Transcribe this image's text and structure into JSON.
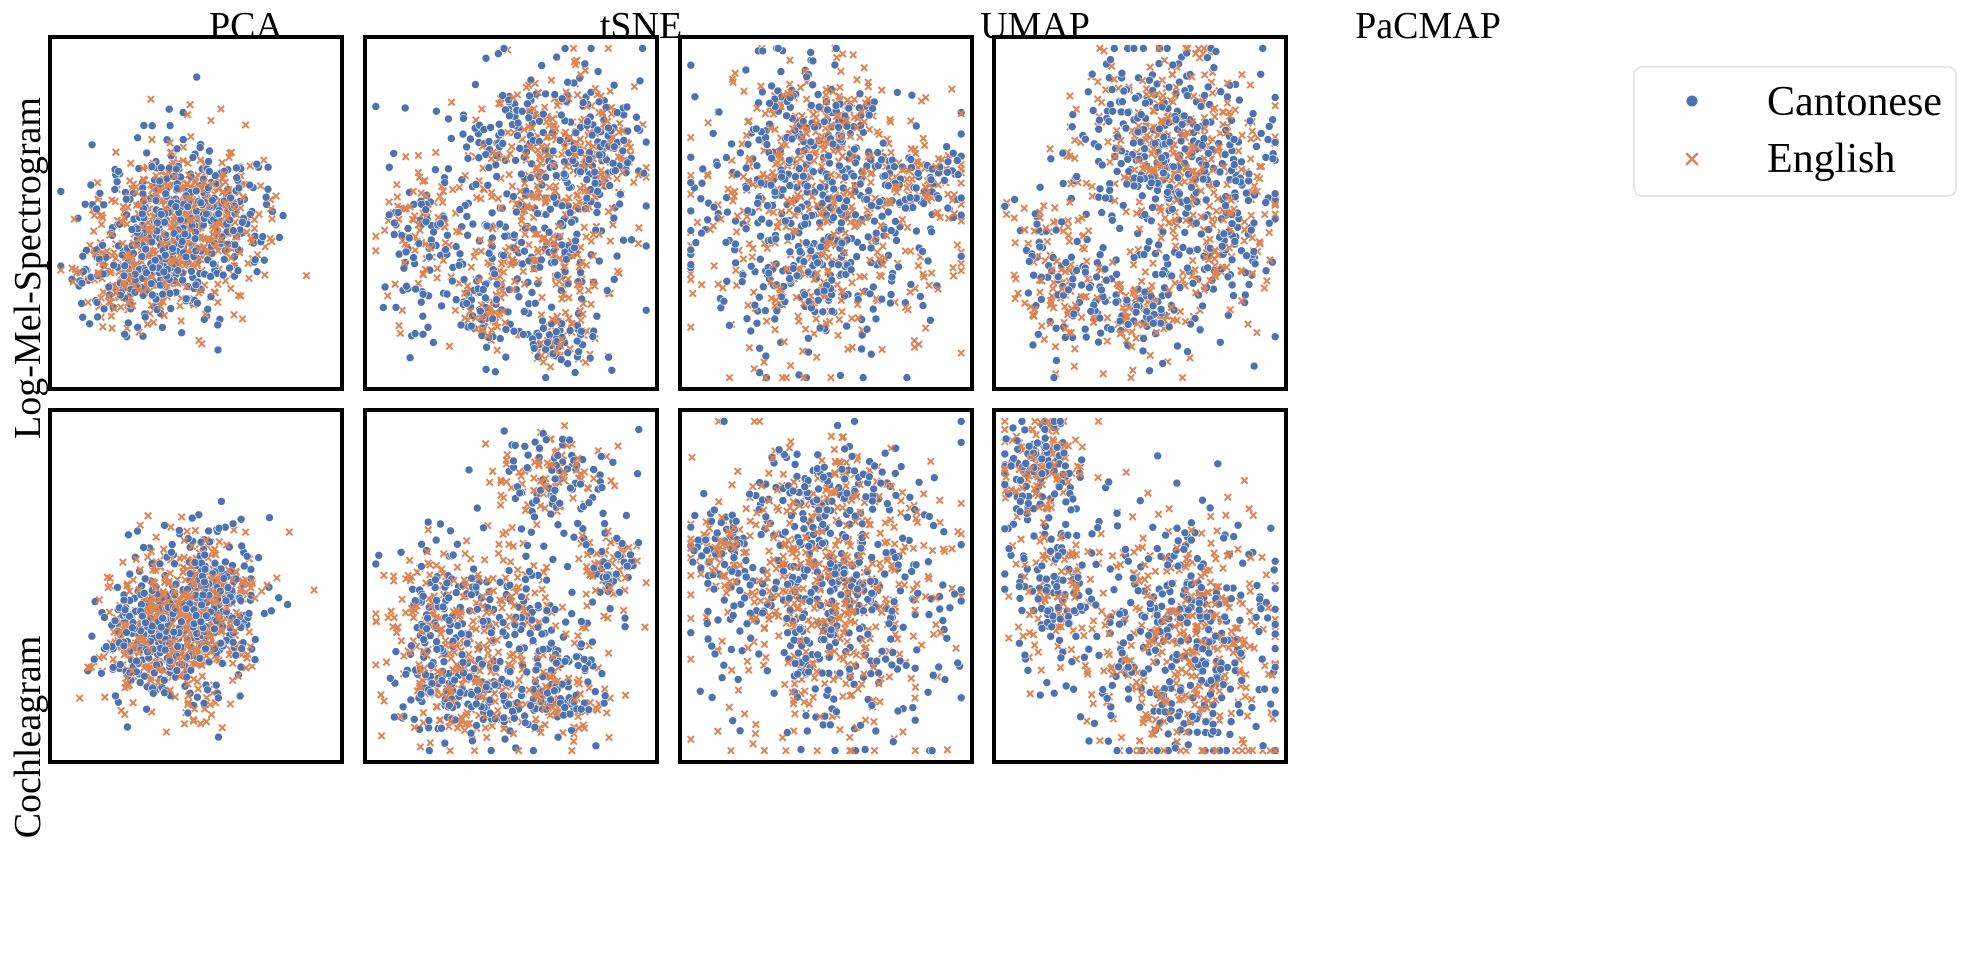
{
  "figure": {
    "columns": [
      "PCA",
      "tSNE",
      "UMAP",
      "PaCMAP"
    ],
    "rows": [
      "Log-Mel-Spectrogram",
      "Cochleagram"
    ],
    "legend": {
      "items": [
        {
          "label": "Cantonese",
          "marker": "circle",
          "color": "#4c72b0"
        },
        {
          "label": "English",
          "marker": "x",
          "color": "#dd8452"
        }
      ],
      "placement": "upper-right, outside plots"
    }
  },
  "chart_data": [
    {
      "type": "scatter",
      "row": "Log-Mel-Spectrogram",
      "column": "PCA",
      "axes": "hidden",
      "grid": false,
      "series": [
        {
          "name": "Cantonese",
          "marker": "circle",
          "color": "#4c72b0",
          "x": [],
          "y": []
        },
        {
          "name": "English",
          "marker": "x",
          "color": "#dd8452",
          "x": [],
          "y": []
        }
      ]
    },
    {
      "type": "scatter",
      "row": "Log-Mel-Spectrogram",
      "column": "tSNE",
      "axes": "hidden",
      "grid": false,
      "series": [
        {
          "name": "Cantonese",
          "marker": "circle",
          "color": "#4c72b0",
          "x": [],
          "y": []
        },
        {
          "name": "English",
          "marker": "x",
          "color": "#dd8452",
          "x": [],
          "y": []
        }
      ]
    },
    {
      "type": "scatter",
      "row": "Log-Mel-Spectrogram",
      "column": "UMAP",
      "axes": "hidden",
      "grid": false,
      "series": [
        {
          "name": "Cantonese",
          "marker": "circle",
          "color": "#4c72b0",
          "x": [],
          "y": []
        },
        {
          "name": "English",
          "marker": "x",
          "color": "#dd8452",
          "x": [],
          "y": []
        }
      ]
    },
    {
      "type": "scatter",
      "row": "Log-Mel-Spectrogram",
      "column": "PaCMAP",
      "axes": "hidden",
      "grid": false,
      "series": [
        {
          "name": "Cantonese",
          "marker": "circle",
          "color": "#4c72b0",
          "x": [],
          "y": []
        },
        {
          "name": "English",
          "marker": "x",
          "color": "#dd8452",
          "x": [],
          "y": []
        }
      ]
    },
    {
      "type": "scatter",
      "row": "Cochleagram",
      "column": "PCA",
      "axes": "hidden",
      "grid": false,
      "series": [
        {
          "name": "Cantonese",
          "marker": "circle",
          "color": "#4c72b0",
          "x": [],
          "y": []
        },
        {
          "name": "English",
          "marker": "x",
          "color": "#dd8452",
          "x": [],
          "y": []
        }
      ]
    },
    {
      "type": "scatter",
      "row": "Cochleagram",
      "column": "tSNE",
      "axes": "hidden",
      "grid": false,
      "series": [
        {
          "name": "Cantonese",
          "marker": "circle",
          "color": "#4c72b0",
          "x": [],
          "y": []
        },
        {
          "name": "English",
          "marker": "x",
          "color": "#dd8452",
          "x": [],
          "y": []
        }
      ]
    },
    {
      "type": "scatter",
      "row": "Cochleagram",
      "column": "UMAP",
      "axes": "hidden",
      "grid": false,
      "series": [
        {
          "name": "Cantonese",
          "marker": "circle",
          "color": "#4c72b0",
          "x": [],
          "y": []
        },
        {
          "name": "English",
          "marker": "x",
          "color": "#dd8452",
          "x": [],
          "y": []
        }
      ]
    },
    {
      "type": "scatter",
      "row": "Cochleagram",
      "column": "PaCMAP",
      "axes": "hidden",
      "grid": false,
      "series": [
        {
          "name": "Cantonese",
          "marker": "circle",
          "color": "#4c72b0",
          "x": [],
          "y": []
        },
        {
          "name": "English",
          "marker": "x",
          "color": "#dd8452",
          "x": [],
          "y": []
        }
      ]
    }
  ]
}
